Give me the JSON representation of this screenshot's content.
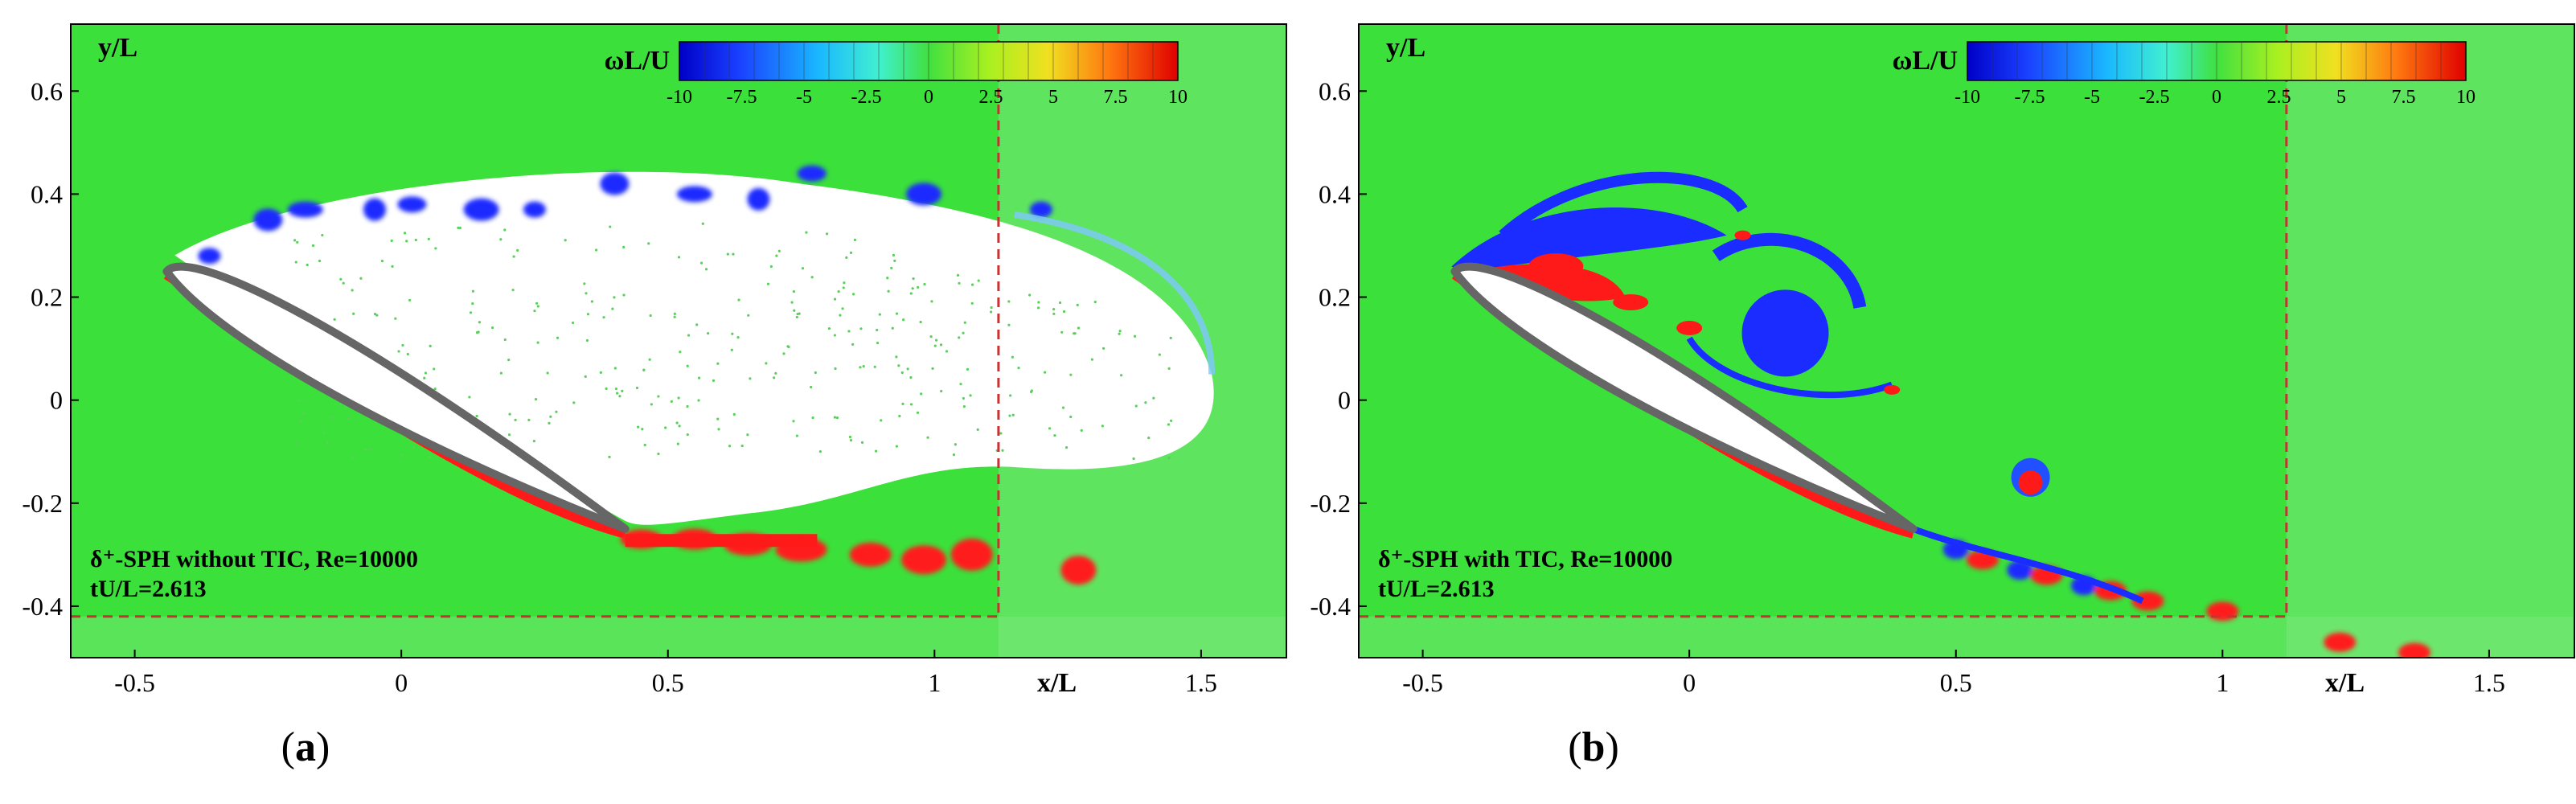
{
  "chart_data": [
    {
      "type": "heatmap",
      "panel_label": "a",
      "xlabel": "x/L",
      "ylabel": "y/L",
      "xlim": [
        -0.62,
        1.66
      ],
      "ylim": [
        -0.5,
        0.73
      ],
      "xticks": [
        "-0.5",
        "0",
        "0.5",
        "1",
        "1.5"
      ],
      "yticks": [
        "0.6",
        "0.4",
        "0.2",
        "0",
        "-0.2",
        "-0.4"
      ],
      "colorbar": {
        "label": "ωL/U",
        "range": [
          -10,
          10
        ],
        "ticks": [
          "-10",
          "-7.5",
          "-5",
          "-2.5",
          "0",
          "2.5",
          "5",
          "7.5",
          "10"
        ]
      },
      "annotation_line1": "δ⁺-SPH without TIC, Re=10000",
      "annotation_line2": "tU/L=2.613",
      "airfoil": {
        "leading_edge": [
          -0.44,
          0.25
        ],
        "trailing_edge": [
          0.42,
          -0.25
        ]
      },
      "domain_box": {
        "x_right": 1.12,
        "y_bottom": -0.42
      },
      "colors": {
        "background": "#3be03b",
        "positive": "#ff1a1a",
        "negative": "#1a2cff",
        "airfoil": "#666666",
        "dashed": "#c83232"
      }
    },
    {
      "type": "heatmap",
      "panel_label": "b",
      "xlabel": "x/L",
      "ylabel": "y/L",
      "xlim": [
        -0.62,
        1.66
      ],
      "ylim": [
        -0.5,
        0.73
      ],
      "xticks": [
        "-0.5",
        "0",
        "0.5",
        "1",
        "1.5"
      ],
      "yticks": [
        "0.6",
        "0.4",
        "0.2",
        "0",
        "-0.2",
        "-0.4"
      ],
      "colorbar": {
        "label": "ωL/U",
        "range": [
          -10,
          10
        ],
        "ticks": [
          "-10",
          "-7.5",
          "-5",
          "-2.5",
          "0",
          "2.5",
          "5",
          "7.5",
          "10"
        ]
      },
      "annotation_line1": "δ⁺-SPH with TIC, Re=10000",
      "annotation_line2": "tU/L=2.613",
      "airfoil": {
        "leading_edge": [
          -0.44,
          0.25
        ],
        "trailing_edge": [
          0.42,
          -0.25
        ]
      },
      "domain_box": {
        "x_right": 1.12,
        "y_bottom": -0.42
      },
      "colors": {
        "background": "#3be03b",
        "positive": "#ff1a1a",
        "negative": "#1a2cff",
        "airfoil": "#666666",
        "dashed": "#c83232"
      }
    }
  ]
}
